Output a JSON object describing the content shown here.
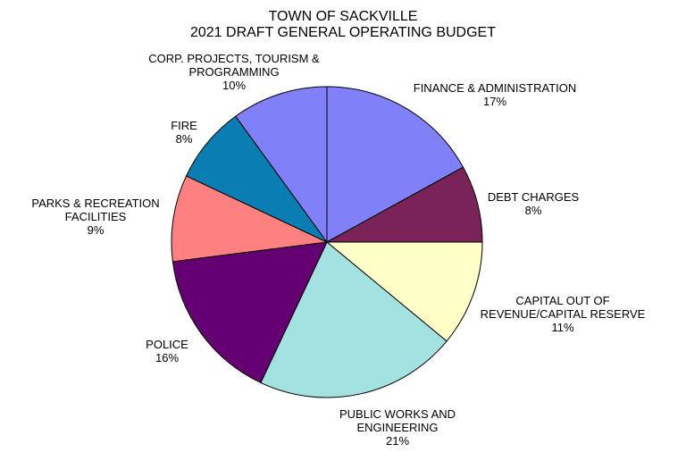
{
  "chart_data": {
    "type": "pie",
    "title": "TOWN OF SACKVILLE",
    "subtitle": "2021 DRAFT GENERAL OPERATING BUDGET",
    "unit": "%",
    "start_angle_deg": 0,
    "direction": "clockwise",
    "slices": [
      {
        "label_lines": [
          "FINANCE & ADMINISTRATION"
        ],
        "value": 17,
        "value_label": "17%",
        "color": "#8080F8"
      },
      {
        "label_lines": [
          "DEBT CHARGES"
        ],
        "value": 8,
        "value_label": "8%",
        "color": "#7A2358"
      },
      {
        "label_lines": [
          "CAPITAL OUT OF",
          "REVENUE/CAPITAL RESERVE"
        ],
        "value": 11,
        "value_label": "11%",
        "color": "#FFFFC8"
      },
      {
        "label_lines": [
          "PUBLIC WORKS AND",
          "ENGINEERING"
        ],
        "value": 21,
        "value_label": "21%",
        "color": "#A4E1E1"
      },
      {
        "label_lines": [
          "POLICE"
        ],
        "value": 16,
        "value_label": "16%",
        "color": "#650072"
      },
      {
        "label_lines": [
          "PARKS & RECREATION",
          "FACILITIES"
        ],
        "value": 9,
        "value_label": "9%",
        "color": "#FF8080"
      },
      {
        "label_lines": [
          "FIRE"
        ],
        "value": 8,
        "value_label": "8%",
        "color": "#0A7DB2"
      },
      {
        "label_lines": [
          "CORP. PROJECTS, TOURISM &",
          "PROGRAMMING"
        ],
        "value": 10,
        "value_label": "10%",
        "color": "#8080F8"
      }
    ]
  }
}
